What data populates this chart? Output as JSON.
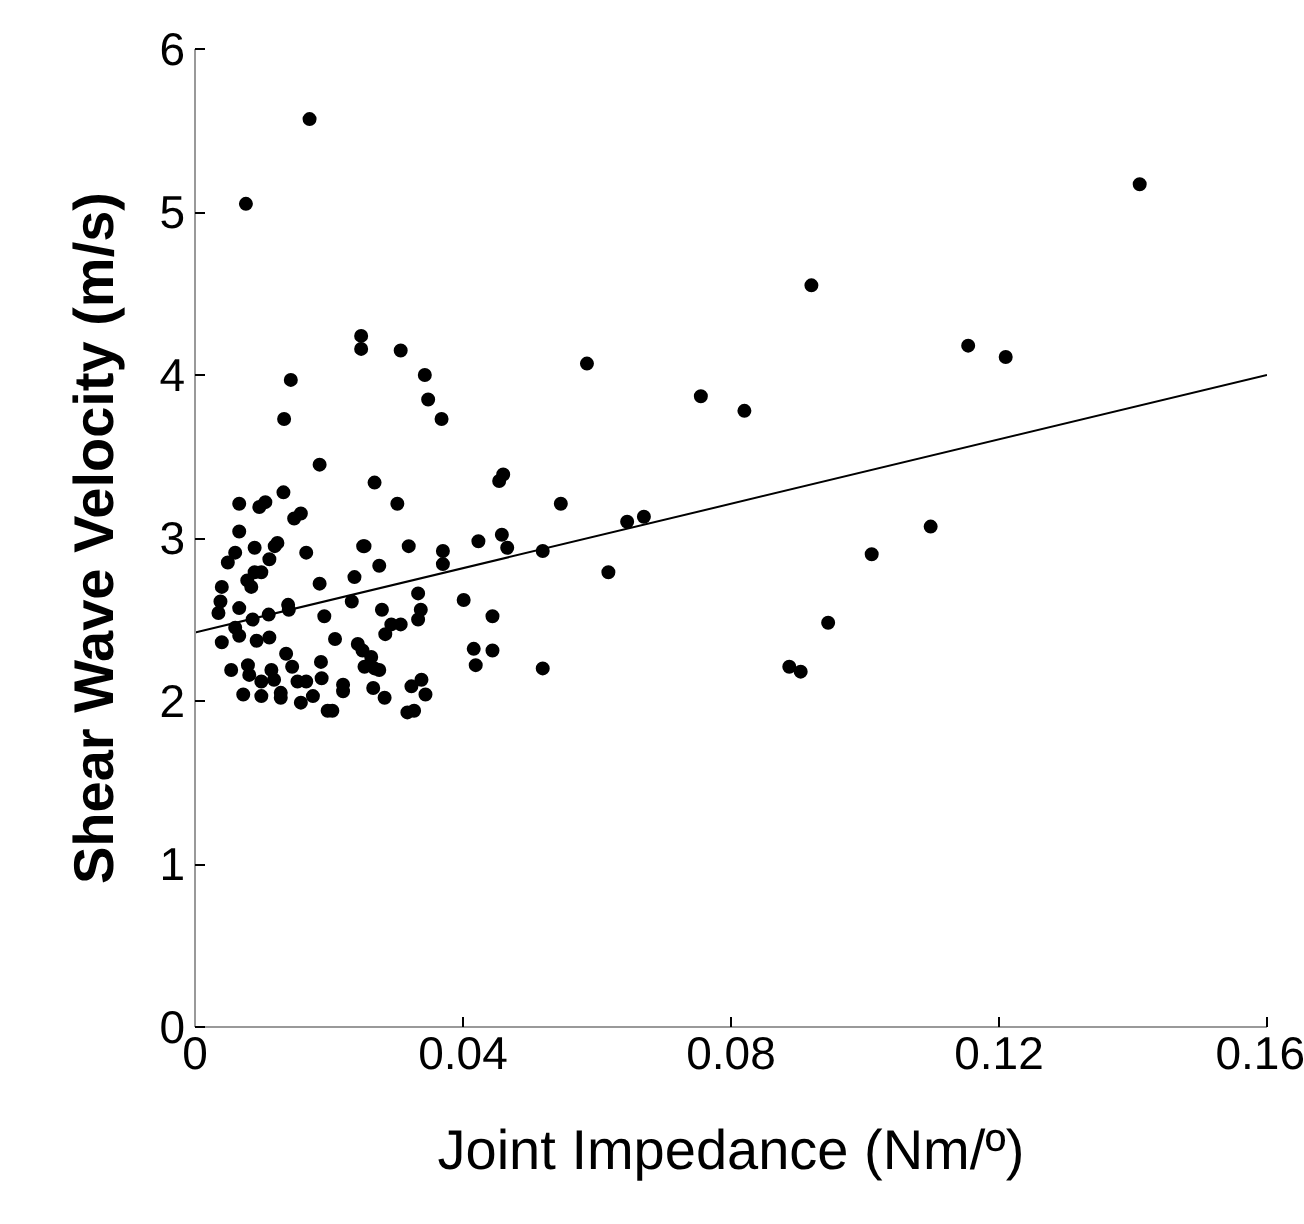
{
  "chart_data": {
    "type": "scatter",
    "xlabel": "Joint Impedance (Nm/º)",
    "ylabel": "Shear Wave Velocity (m/s)",
    "xlim": [
      0,
      0.16
    ],
    "ylim": [
      0,
      6
    ],
    "xticks": [
      0,
      0.04,
      0.08,
      0.12,
      0.16
    ],
    "yticks": [
      0,
      1,
      2,
      3,
      4,
      5,
      6
    ],
    "grid": false,
    "marker": "circle",
    "series": [
      {
        "color": "#000000",
        "x": [
          0.0076,
          0.0171,
          0.141,
          0.092,
          0.1154,
          0.121,
          0.0585,
          0.0755,
          0.082,
          0.0645,
          0.067,
          0.0617,
          0.101,
          0.1098,
          0.0945,
          0.0887,
          0.0904,
          0.0302,
          0.0546,
          0.0253,
          0.0319,
          0.037,
          0.0423,
          0.0458,
          0.0466,
          0.0519,
          0.0275,
          0.037,
          0.0333,
          0.0279,
          0.0337,
          0.0333,
          0.0293,
          0.0307,
          0.0284,
          0.0401,
          0.0444,
          0.0416,
          0.0444,
          0.0419,
          0.0519,
          0.0263,
          0.0253,
          0.0268,
          0.0275,
          0.0323,
          0.0338,
          0.0266,
          0.0283,
          0.0344,
          0.0317,
          0.0327,
          0.0248,
          0.0248,
          0.0307,
          0.0343,
          0.0348,
          0.0368,
          0.0268,
          0.046,
          0.0454,
          0.0143,
          0.0133,
          0.0186,
          0.0066,
          0.0096,
          0.0105,
          0.0132,
          0.0148,
          0.0158,
          0.0066,
          0.006,
          0.0089,
          0.0119,
          0.0123,
          0.0049,
          0.0111,
          0.0166,
          0.0251,
          0.0078,
          0.0089,
          0.0099,
          0.0084,
          0.004,
          0.0186,
          0.0238,
          0.0038,
          0.0035,
          0.0066,
          0.0139,
          0.014,
          0.0234,
          0.0086,
          0.011,
          0.006,
          0.0066,
          0.004,
          0.0092,
          0.0111,
          0.0193,
          0.0209,
          0.0054,
          0.0079,
          0.0081,
          0.0114,
          0.0118,
          0.0136,
          0.0145,
          0.0153,
          0.0166,
          0.0188,
          0.0189,
          0.0099,
          0.0099,
          0.0072,
          0.0128,
          0.0128,
          0.0158,
          0.0176,
          0.0221,
          0.0221,
          0.0198,
          0.0205,
          0.0243,
          0.025
        ],
        "values": [
          5.05,
          5.57,
          5.17,
          4.55,
          4.18,
          4.11,
          4.07,
          3.87,
          3.78,
          3.1,
          3.13,
          2.79,
          2.9,
          3.07,
          2.48,
          2.21,
          2.18,
          3.21,
          3.21,
          2.95,
          2.95,
          2.92,
          2.98,
          3.02,
          2.94,
          2.92,
          2.83,
          2.84,
          2.66,
          2.56,
          2.56,
          2.5,
          2.47,
          2.47,
          2.41,
          2.62,
          2.52,
          2.32,
          2.31,
          2.22,
          2.2,
          2.27,
          2.21,
          2.2,
          2.19,
          2.09,
          2.13,
          2.08,
          2.02,
          2.04,
          1.93,
          1.94,
          4.24,
          4.16,
          4.15,
          4.0,
          3.85,
          3.73,
          3.34,
          3.39,
          3.35,
          3.97,
          3.73,
          3.45,
          3.21,
          3.19,
          3.22,
          3.28,
          3.12,
          3.15,
          3.04,
          2.91,
          2.94,
          2.95,
          2.97,
          2.85,
          2.87,
          2.91,
          2.95,
          2.74,
          2.79,
          2.79,
          2.7,
          2.7,
          2.72,
          2.76,
          2.61,
          2.54,
          2.57,
          2.59,
          2.56,
          2.61,
          2.5,
          2.53,
          2.45,
          2.4,
          2.36,
          2.37,
          2.39,
          2.52,
          2.38,
          2.19,
          2.22,
          2.16,
          2.19,
          2.13,
          2.29,
          2.21,
          2.12,
          2.12,
          2.24,
          2.14,
          2.12,
          2.03,
          2.04,
          2.05,
          2.02,
          1.99,
          2.03,
          2.1,
          2.06,
          1.94,
          1.94,
          2.35,
          2.31
        ]
      },
      {
        "color": "#000000",
        "type": "line",
        "marker": "none",
        "x": [
          0,
          0.16
        ],
        "values": [
          2.42,
          4.0
        ]
      }
    ]
  }
}
